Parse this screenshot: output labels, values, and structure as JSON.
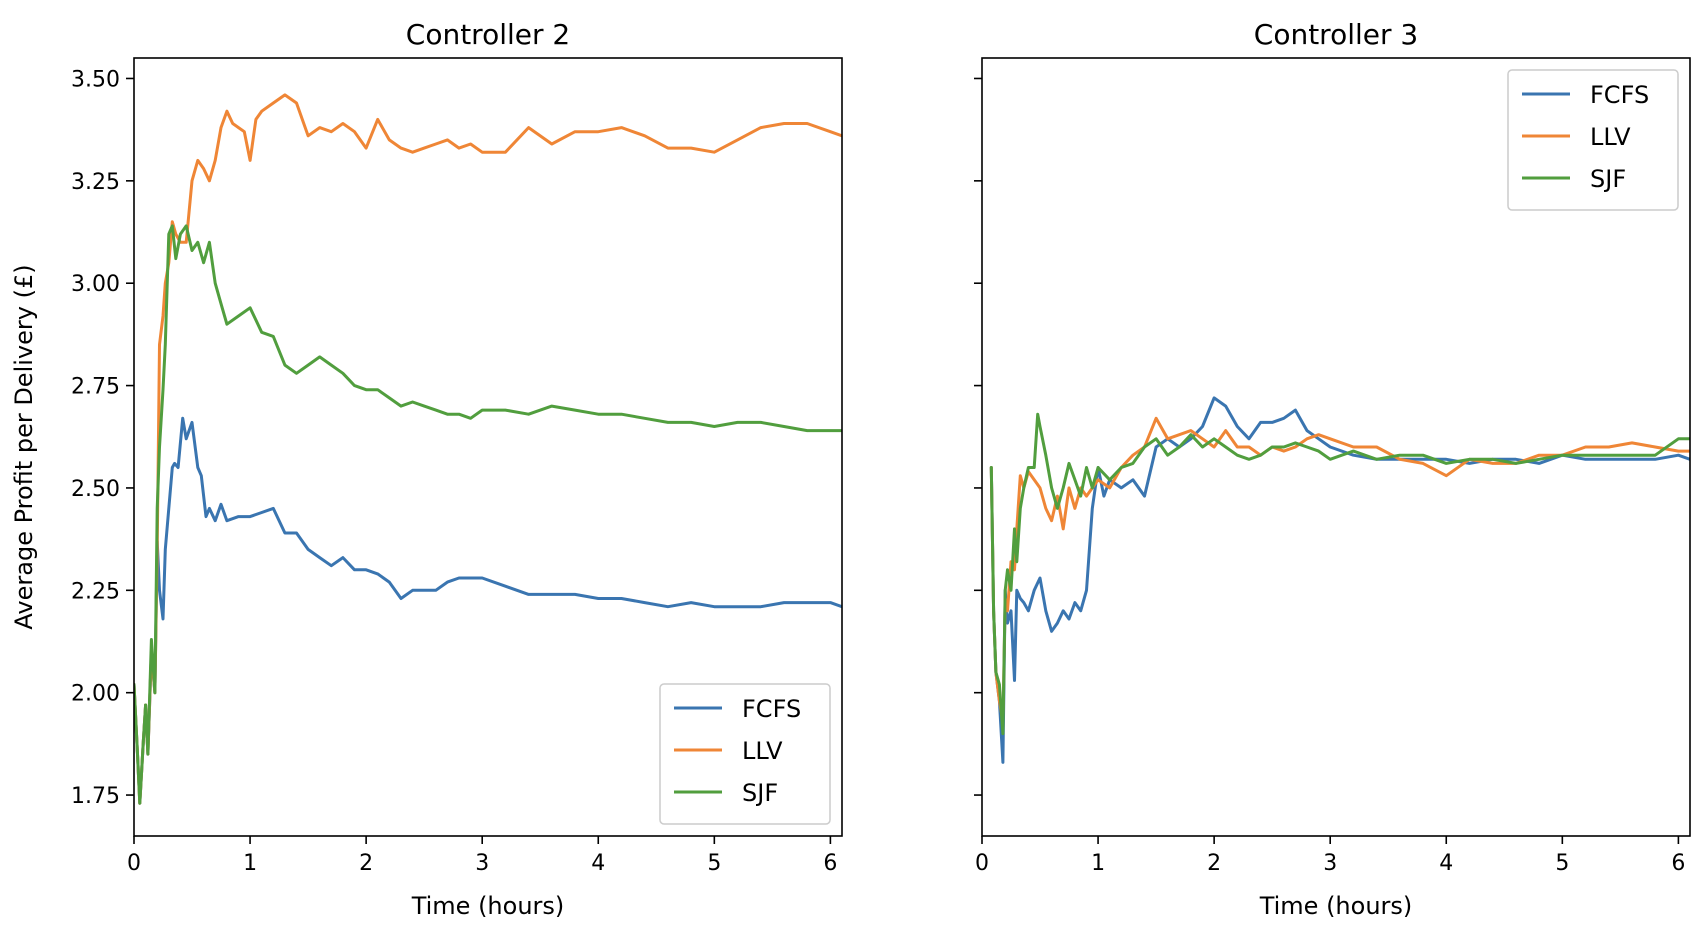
{
  "colors": {
    "FCFS": "#3a75b0",
    "LLV": "#ef8636",
    "SJF": "#519e3e"
  },
  "chart_data": [
    {
      "type": "line",
      "title": "Controller 2",
      "xlabel": "Time (hours)",
      "ylabel": "Average Profit per Delivery (£)",
      "xlim": [
        0,
        6.1
      ],
      "ylim": [
        1.65,
        3.55
      ],
      "xticks": [
        0,
        1,
        2,
        3,
        4,
        5,
        6
      ],
      "yticks": [
        1.75,
        2.0,
        2.25,
        2.5,
        2.75,
        3.0,
        3.25,
        3.5
      ],
      "ytick_labels": [
        "1.75",
        "2.00",
        "2.25",
        "2.50",
        "2.75",
        "3.00",
        "3.25",
        "3.50"
      ],
      "legend_position": "lower right",
      "series": [
        {
          "name": "FCFS",
          "color": "#3a75b0",
          "x": [
            0,
            0.03,
            0.05,
            0.08,
            0.1,
            0.12,
            0.15,
            0.18,
            0.2,
            0.22,
            0.25,
            0.27,
            0.3,
            0.33,
            0.35,
            0.38,
            0.42,
            0.45,
            0.5,
            0.55,
            0.58,
            0.62,
            0.65,
            0.7,
            0.75,
            0.8,
            0.9,
            1.0,
            1.1,
            1.2,
            1.3,
            1.4,
            1.5,
            1.6,
            1.7,
            1.8,
            1.9,
            2.0,
            2.1,
            2.2,
            2.3,
            2.4,
            2.5,
            2.6,
            2.7,
            2.8,
            2.9,
            3.0,
            3.2,
            3.4,
            3.6,
            3.8,
            4.0,
            4.2,
            4.4,
            4.6,
            4.8,
            5.0,
            5.2,
            5.4,
            5.6,
            5.8,
            6.0,
            6.1
          ],
          "y": [
            2.02,
            1.85,
            1.73,
            1.88,
            1.97,
            1.85,
            2.1,
            2.0,
            2.37,
            2.25,
            2.18,
            2.35,
            2.45,
            2.55,
            2.56,
            2.55,
            2.67,
            2.62,
            2.66,
            2.55,
            2.53,
            2.43,
            2.45,
            2.42,
            2.46,
            2.42,
            2.43,
            2.43,
            2.44,
            2.45,
            2.39,
            2.39,
            2.35,
            2.33,
            2.31,
            2.33,
            2.3,
            2.3,
            2.29,
            2.27,
            2.23,
            2.25,
            2.25,
            2.25,
            2.27,
            2.28,
            2.28,
            2.28,
            2.26,
            2.24,
            2.24,
            2.24,
            2.23,
            2.23,
            2.22,
            2.21,
            2.22,
            2.21,
            2.21,
            2.21,
            2.22,
            2.22,
            2.22,
            2.21
          ]
        },
        {
          "name": "LLV",
          "color": "#ef8636",
          "x": [
            0,
            0.03,
            0.05,
            0.08,
            0.1,
            0.12,
            0.15,
            0.18,
            0.2,
            0.22,
            0.25,
            0.27,
            0.3,
            0.33,
            0.36,
            0.4,
            0.45,
            0.5,
            0.55,
            0.6,
            0.65,
            0.7,
            0.75,
            0.8,
            0.85,
            0.9,
            0.95,
            1.0,
            1.05,
            1.1,
            1.2,
            1.3,
            1.4,
            1.5,
            1.6,
            1.7,
            1.8,
            1.9,
            2.0,
            2.1,
            2.2,
            2.3,
            2.4,
            2.5,
            2.6,
            2.7,
            2.8,
            2.9,
            3.0,
            3.2,
            3.4,
            3.6,
            3.8,
            4.0,
            4.2,
            4.4,
            4.6,
            4.8,
            5.0,
            5.2,
            5.4,
            5.6,
            5.8,
            6.0,
            6.1
          ],
          "y": [
            2.02,
            1.85,
            1.73,
            1.88,
            1.97,
            1.85,
            2.1,
            2.0,
            2.35,
            2.85,
            2.92,
            3.0,
            3.05,
            3.15,
            3.12,
            3.1,
            3.1,
            3.25,
            3.3,
            3.28,
            3.25,
            3.3,
            3.38,
            3.42,
            3.39,
            3.38,
            3.37,
            3.3,
            3.4,
            3.42,
            3.44,
            3.46,
            3.44,
            3.36,
            3.38,
            3.37,
            3.39,
            3.37,
            3.33,
            3.4,
            3.35,
            3.33,
            3.32,
            3.33,
            3.34,
            3.35,
            3.33,
            3.34,
            3.32,
            3.32,
            3.38,
            3.34,
            3.37,
            3.37,
            3.38,
            3.36,
            3.33,
            3.33,
            3.32,
            3.35,
            3.38,
            3.39,
            3.39,
            3.37,
            3.36
          ]
        },
        {
          "name": "SJF",
          "color": "#519e3e",
          "x": [
            0,
            0.03,
            0.05,
            0.08,
            0.1,
            0.12,
            0.15,
            0.18,
            0.2,
            0.22,
            0.25,
            0.27,
            0.3,
            0.33,
            0.36,
            0.4,
            0.45,
            0.5,
            0.55,
            0.6,
            0.65,
            0.7,
            0.75,
            0.8,
            0.9,
            1.0,
            1.1,
            1.2,
            1.3,
            1.4,
            1.5,
            1.6,
            1.7,
            1.8,
            1.9,
            2.0,
            2.1,
            2.2,
            2.3,
            2.4,
            2.5,
            2.6,
            2.7,
            2.8,
            2.9,
            3.0,
            3.2,
            3.4,
            3.6,
            3.8,
            4.0,
            4.2,
            4.4,
            4.6,
            4.8,
            5.0,
            5.2,
            5.4,
            5.6,
            5.8,
            6.0,
            6.1
          ],
          "y": [
            2.02,
            1.85,
            1.73,
            1.88,
            1.97,
            1.85,
            2.13,
            2.0,
            2.45,
            2.6,
            2.74,
            2.85,
            3.12,
            3.14,
            3.06,
            3.12,
            3.14,
            3.08,
            3.1,
            3.05,
            3.1,
            3.0,
            2.95,
            2.9,
            2.92,
            2.94,
            2.88,
            2.87,
            2.8,
            2.78,
            2.8,
            2.82,
            2.8,
            2.78,
            2.75,
            2.74,
            2.74,
            2.72,
            2.7,
            2.71,
            2.7,
            2.69,
            2.68,
            2.68,
            2.67,
            2.69,
            2.69,
            2.68,
            2.7,
            2.69,
            2.68,
            2.68,
            2.67,
            2.66,
            2.66,
            2.65,
            2.66,
            2.66,
            2.65,
            2.64,
            2.64,
            2.64
          ]
        }
      ]
    },
    {
      "type": "line",
      "title": "Controller 3",
      "xlabel": "Time (hours)",
      "ylabel": "",
      "xlim": [
        0,
        6.1
      ],
      "ylim": [
        1.65,
        3.55
      ],
      "xticks": [
        0,
        1,
        2,
        3,
        4,
        5,
        6
      ],
      "yticks": [
        1.75,
        2.0,
        2.25,
        2.5,
        2.75,
        3.0,
        3.25,
        3.5
      ],
      "ytick_labels": [],
      "legend_position": "upper right",
      "series": [
        {
          "name": "FCFS",
          "color": "#3a75b0",
          "x": [
            0.08,
            0.1,
            0.12,
            0.15,
            0.18,
            0.2,
            0.22,
            0.25,
            0.28,
            0.3,
            0.33,
            0.36,
            0.4,
            0.45,
            0.5,
            0.55,
            0.6,
            0.65,
            0.7,
            0.75,
            0.8,
            0.85,
            0.9,
            0.95,
            1.0,
            1.05,
            1.1,
            1.2,
            1.3,
            1.4,
            1.5,
            1.6,
            1.7,
            1.8,
            1.9,
            2.0,
            2.1,
            2.2,
            2.3,
            2.4,
            2.5,
            2.6,
            2.7,
            2.8,
            2.9,
            3.0,
            3.2,
            3.4,
            3.6,
            3.8,
            4.0,
            4.2,
            4.4,
            4.6,
            4.8,
            5.0,
            5.2,
            5.4,
            5.6,
            5.8,
            6.0,
            6.1
          ],
          "y": [
            2.55,
            2.2,
            2.05,
            1.98,
            1.83,
            2.25,
            2.17,
            2.2,
            2.03,
            2.25,
            2.23,
            2.22,
            2.2,
            2.25,
            2.28,
            2.2,
            2.15,
            2.17,
            2.2,
            2.18,
            2.22,
            2.2,
            2.25,
            2.45,
            2.55,
            2.48,
            2.52,
            2.5,
            2.52,
            2.48,
            2.6,
            2.62,
            2.6,
            2.62,
            2.65,
            2.72,
            2.7,
            2.65,
            2.62,
            2.66,
            2.66,
            2.67,
            2.69,
            2.64,
            2.62,
            2.6,
            2.58,
            2.57,
            2.57,
            2.57,
            2.57,
            2.56,
            2.57,
            2.57,
            2.56,
            2.58,
            2.57,
            2.57,
            2.57,
            2.57,
            2.58,
            2.57
          ]
        },
        {
          "name": "LLV",
          "color": "#ef8636",
          "x": [
            0.08,
            0.1,
            0.12,
            0.15,
            0.18,
            0.2,
            0.22,
            0.25,
            0.28,
            0.3,
            0.33,
            0.36,
            0.4,
            0.45,
            0.5,
            0.55,
            0.6,
            0.65,
            0.7,
            0.75,
            0.8,
            0.85,
            0.9,
            0.95,
            1.0,
            1.1,
            1.2,
            1.3,
            1.4,
            1.5,
            1.6,
            1.7,
            1.8,
            1.9,
            2.0,
            2.1,
            2.2,
            2.3,
            2.4,
            2.5,
            2.6,
            2.7,
            2.8,
            2.9,
            3.0,
            3.2,
            3.4,
            3.6,
            3.8,
            4.0,
            4.2,
            4.4,
            4.6,
            4.8,
            5.0,
            5.2,
            5.4,
            5.6,
            5.8,
            6.0,
            6.1
          ],
          "y": [
            2.55,
            2.2,
            2.05,
            1.98,
            1.93,
            2.23,
            2.2,
            2.32,
            2.3,
            2.4,
            2.53,
            2.5,
            2.54,
            2.52,
            2.5,
            2.45,
            2.42,
            2.48,
            2.4,
            2.5,
            2.45,
            2.5,
            2.48,
            2.5,
            2.52,
            2.5,
            2.55,
            2.58,
            2.6,
            2.67,
            2.62,
            2.63,
            2.64,
            2.62,
            2.6,
            2.64,
            2.6,
            2.6,
            2.58,
            2.6,
            2.59,
            2.6,
            2.62,
            2.63,
            2.62,
            2.6,
            2.6,
            2.57,
            2.56,
            2.53,
            2.57,
            2.56,
            2.56,
            2.58,
            2.58,
            2.6,
            2.6,
            2.61,
            2.6,
            2.59,
            2.59
          ]
        },
        {
          "name": "SJF",
          "color": "#519e3e",
          "x": [
            0.08,
            0.1,
            0.12,
            0.15,
            0.18,
            0.2,
            0.22,
            0.25,
            0.28,
            0.3,
            0.33,
            0.36,
            0.4,
            0.45,
            0.48,
            0.5,
            0.55,
            0.6,
            0.65,
            0.7,
            0.75,
            0.8,
            0.85,
            0.9,
            0.95,
            1.0,
            1.1,
            1.2,
            1.3,
            1.4,
            1.5,
            1.6,
            1.7,
            1.8,
            1.9,
            2.0,
            2.1,
            2.2,
            2.3,
            2.4,
            2.5,
            2.6,
            2.7,
            2.8,
            2.9,
            3.0,
            3.2,
            3.4,
            3.6,
            3.8,
            4.0,
            4.2,
            4.4,
            4.6,
            4.8,
            5.0,
            5.2,
            5.4,
            5.6,
            5.8,
            6.0,
            6.1
          ],
          "y": [
            2.55,
            2.2,
            2.05,
            2.02,
            1.9,
            2.25,
            2.3,
            2.25,
            2.4,
            2.32,
            2.45,
            2.5,
            2.55,
            2.55,
            2.68,
            2.65,
            2.58,
            2.5,
            2.45,
            2.5,
            2.56,
            2.52,
            2.48,
            2.55,
            2.5,
            2.55,
            2.52,
            2.55,
            2.56,
            2.6,
            2.62,
            2.58,
            2.6,
            2.63,
            2.6,
            2.62,
            2.6,
            2.58,
            2.57,
            2.58,
            2.6,
            2.6,
            2.61,
            2.6,
            2.59,
            2.57,
            2.59,
            2.57,
            2.58,
            2.58,
            2.56,
            2.57,
            2.57,
            2.56,
            2.57,
            2.58,
            2.58,
            2.58,
            2.58,
            2.58,
            2.62,
            2.62
          ]
        }
      ]
    }
  ]
}
